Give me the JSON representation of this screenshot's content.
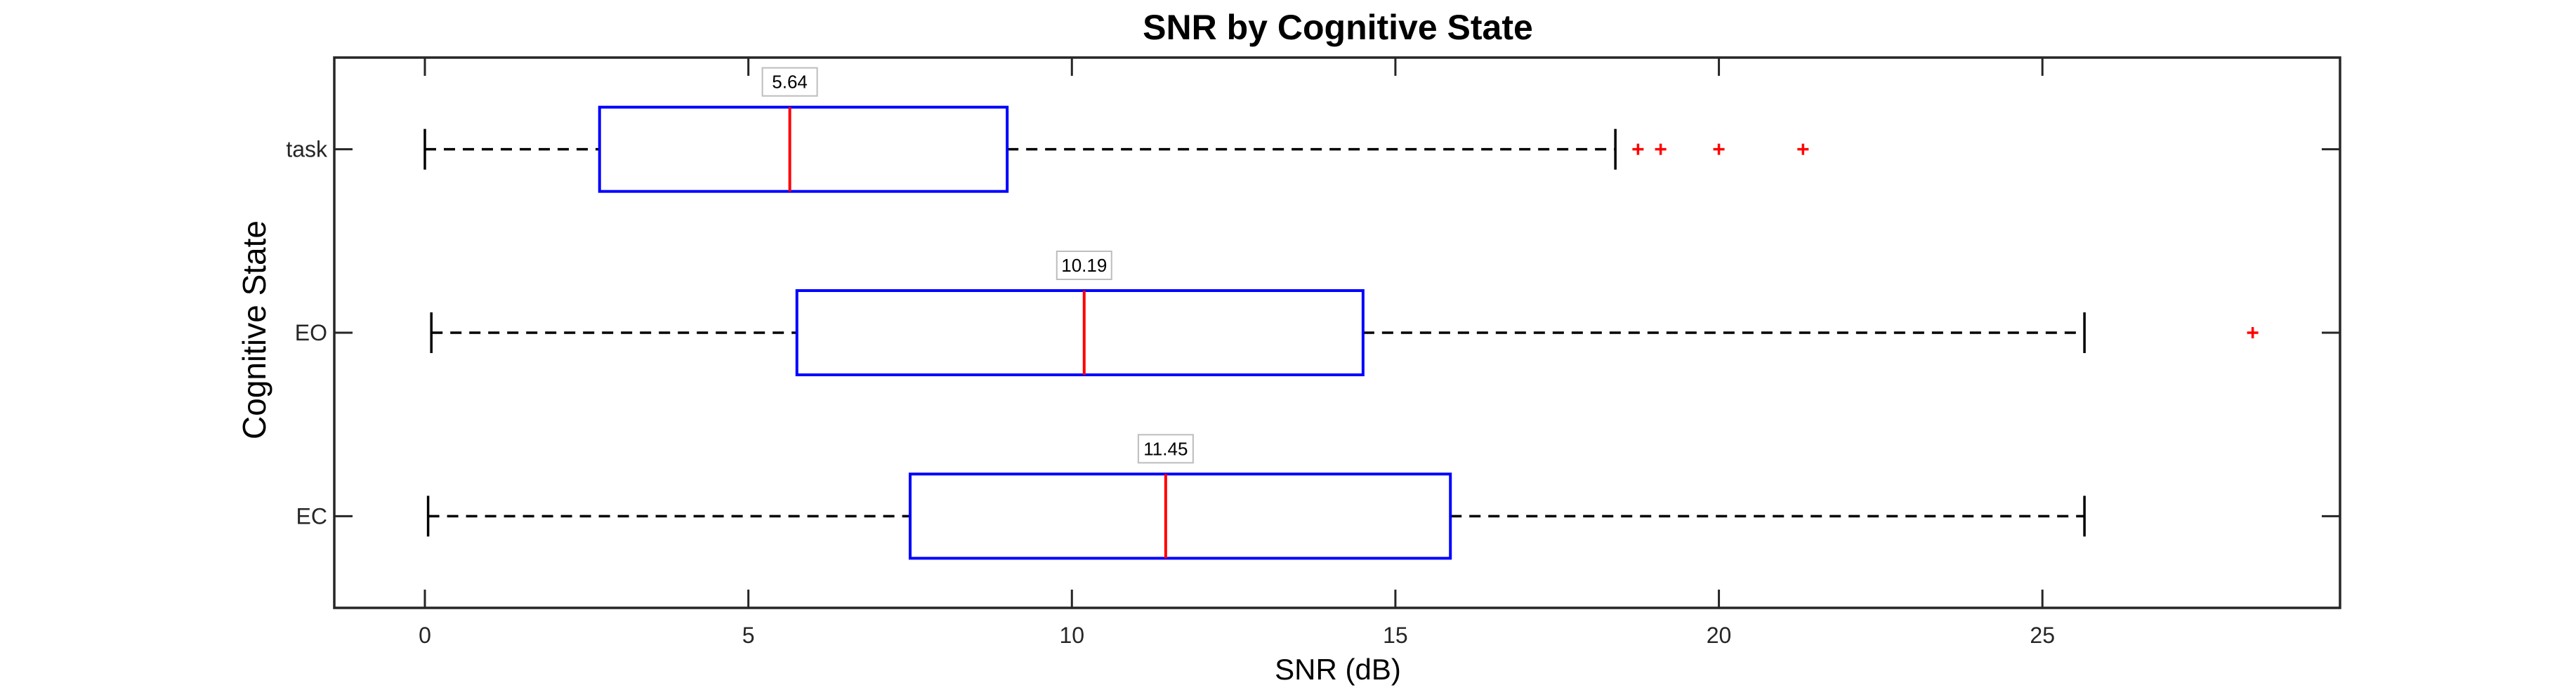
{
  "chart_data": {
    "type": "boxplot",
    "orientation": "horizontal",
    "title": "SNR by Cognitive State",
    "xlabel": "SNR (dB)",
    "ylabel": "Cognitive State",
    "xlim": [
      -1.4,
      29.6
    ],
    "xticks": [
      0,
      5,
      10,
      15,
      20,
      25
    ],
    "categories": [
      "task",
      "EO",
      "EC"
    ],
    "grid": false,
    "legend": "none",
    "colors": {
      "box": "#0000ff",
      "median": "#ff0000",
      "whisker": "#000000",
      "outlier": "#ff0000"
    },
    "groups": [
      {
        "category": "task",
        "whisker_low": 0.0,
        "q1": 2.7,
        "median": 5.64,
        "q3": 9.0,
        "whisker_high": 18.4,
        "outliers": [
          18.75,
          19.1,
          20.0,
          21.3
        ],
        "median_label": "5.64"
      },
      {
        "category": "EO",
        "whisker_low": 0.1,
        "q1": 5.75,
        "median": 10.19,
        "q3": 14.5,
        "whisker_high": 25.65,
        "outliers": [
          28.25
        ],
        "median_label": "10.19"
      },
      {
        "category": "EC",
        "whisker_low": 0.05,
        "q1": 7.5,
        "median": 11.45,
        "q3": 15.85,
        "whisker_high": 25.65,
        "outliers": [],
        "median_label": "11.45"
      }
    ]
  }
}
